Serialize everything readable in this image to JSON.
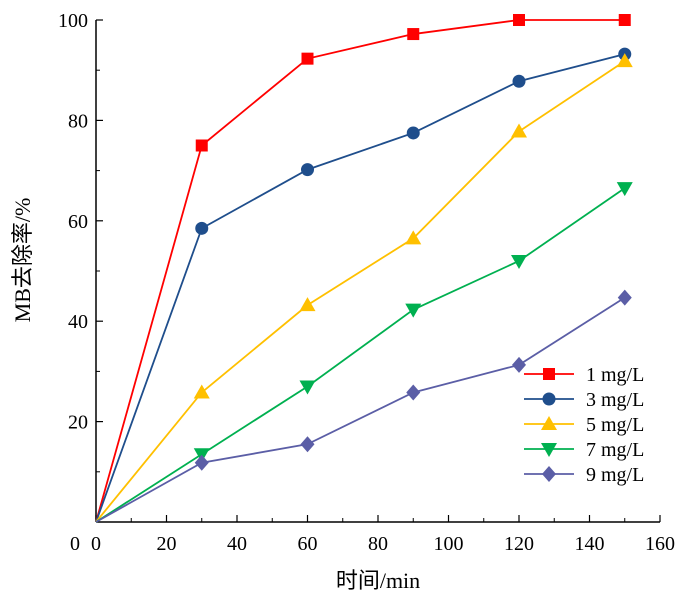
{
  "chart_data": {
    "type": "line",
    "title": "",
    "xlabel": "时间/min",
    "ylabel": "MB去除率/%",
    "xlim": [
      0,
      160
    ],
    "ylim": [
      0,
      100
    ],
    "xticks": [
      0,
      20,
      40,
      60,
      80,
      100,
      120,
      140,
      160
    ],
    "yticks": [
      20,
      40,
      60,
      80,
      100
    ],
    "x": [
      0,
      30,
      60,
      90,
      120,
      150
    ],
    "grid": false,
    "legend_position": "bottom-right",
    "series": [
      {
        "name": "1 mg/L",
        "color": "#ff0000",
        "marker": "square",
        "values": [
          0,
          75.0,
          92.3,
          97.2,
          100.0,
          100.0
        ]
      },
      {
        "name": "3 mg/L",
        "color": "#1f4e8c",
        "marker": "circle",
        "values": [
          0,
          58.5,
          70.2,
          77.5,
          87.8,
          93.2
        ]
      },
      {
        "name": "5 mg/L",
        "color": "#ffc000",
        "marker": "triangle-up",
        "values": [
          0,
          25.8,
          43.2,
          56.5,
          77.8,
          91.8
        ]
      },
      {
        "name": "7 mg/L",
        "color": "#00b050",
        "marker": "triangle-down",
        "values": [
          0,
          13.5,
          27.0,
          42.3,
          52.0,
          66.5
        ]
      },
      {
        "name": "9 mg/L",
        "color": "#5b5ea6",
        "marker": "diamond",
        "values": [
          0,
          11.8,
          15.5,
          25.8,
          31.3,
          44.7
        ]
      }
    ]
  }
}
